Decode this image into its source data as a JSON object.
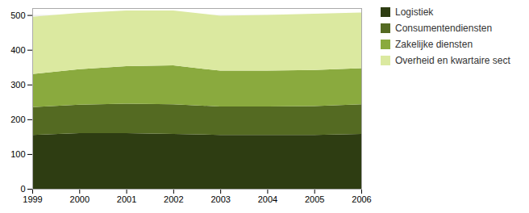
{
  "chart_data": {
    "type": "area",
    "stacked": true,
    "x": [
      1999,
      2000,
      2001,
      2002,
      2003,
      2004,
      2005,
      2006
    ],
    "series": [
      {
        "name": "Logistiek",
        "color": "#2e3d12",
        "values": [
          155,
          160,
          160,
          158,
          155,
          155,
          155,
          158
        ]
      },
      {
        "name": "Consumentendiensten",
        "color": "#546a22",
        "values": [
          80,
          82,
          85,
          85,
          82,
          82,
          83,
          85
        ]
      },
      {
        "name": "Zakelijke diensten",
        "color": "#8aaa3e",
        "values": [
          95,
          102,
          108,
          112,
          103,
          103,
          104,
          104
        ]
      },
      {
        "name": "Overheid en kwartaire sect",
        "color": "#dbe9a0",
        "values": [
          165,
          162,
          160,
          158,
          158,
          160,
          162,
          160
        ]
      }
    ],
    "xlim": [
      1999,
      2006
    ],
    "xticks": [
      1999,
      2000,
      2001,
      2002,
      2003,
      2004,
      2005,
      2006
    ],
    "ylim": [
      0,
      520
    ],
    "yticks": [
      0,
      100,
      200,
      300,
      400,
      500
    ],
    "grid": true,
    "legend": "right"
  }
}
